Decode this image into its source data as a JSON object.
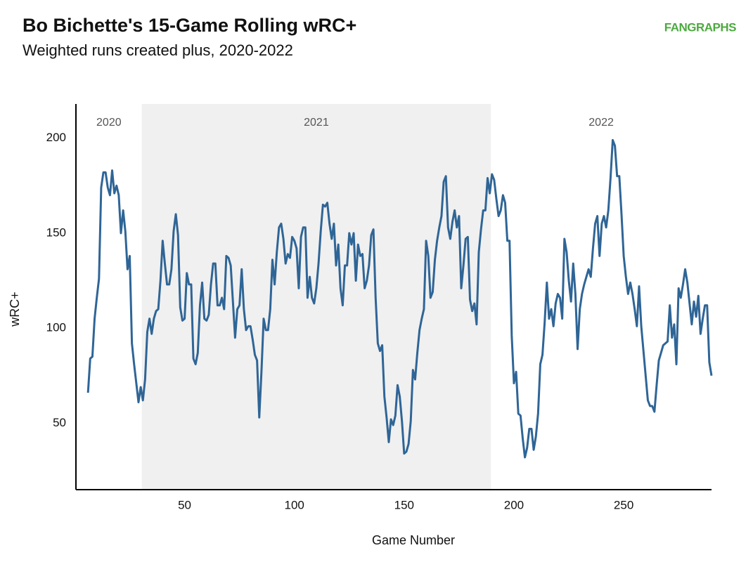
{
  "chart_data": {
    "type": "line",
    "title": "Bo Bichette's 15-Game Rolling wRC+",
    "subtitle": "Weighted runs created plus, 2020-2022",
    "logo": "FANGRAPHS",
    "x_label": "Game Number",
    "y_label": "wRC+",
    "xlim": [
      0.5,
      290
    ],
    "ylim": [
      15,
      218
    ],
    "xticks": [
      50,
      100,
      150,
      200,
      250
    ],
    "yticks": [
      50,
      100,
      150,
      200
    ],
    "grid": false,
    "seasons": [
      {
        "label": "2020",
        "start": 0.5,
        "end": 30.5,
        "shaded": false
      },
      {
        "label": "2021",
        "start": 30.5,
        "end": 189.5,
        "shaded": true
      },
      {
        "label": "2022",
        "start": 189.5,
        "end": 290,
        "shaded": false
      }
    ],
    "x": [
      6,
      7,
      8,
      9,
      10,
      11,
      12,
      13,
      14,
      15,
      16,
      17,
      18,
      19,
      20,
      21,
      22,
      23,
      24,
      25,
      26,
      27,
      28,
      29,
      30,
      31,
      32,
      33,
      34,
      35,
      36,
      37,
      38,
      39,
      40,
      41,
      42,
      43,
      44,
      45,
      46,
      47,
      48,
      49,
      50,
      51,
      52,
      53,
      54,
      55,
      56,
      57,
      58,
      59,
      60,
      61,
      62,
      63,
      64,
      65,
      66,
      67,
      68,
      69,
      70,
      71,
      72,
      73,
      74,
      75,
      76,
      77,
      78,
      79,
      80,
      81,
      82,
      83,
      84,
      85,
      86,
      87,
      88,
      89,
      90,
      91,
      92,
      93,
      94,
      95,
      96,
      97,
      98,
      99,
      100,
      101,
      102,
      103,
      104,
      105,
      106,
      107,
      108,
      109,
      110,
      111,
      112,
      113,
      114,
      115,
      116,
      117,
      118,
      119,
      120,
      121,
      122,
      123,
      124,
      125,
      126,
      127,
      128,
      129,
      130,
      131,
      132,
      133,
      134,
      135,
      136,
      137,
      138,
      139,
      140,
      141,
      142,
      143,
      144,
      145,
      146,
      147,
      148,
      149,
      150,
      151,
      152,
      153,
      154,
      155,
      156,
      157,
      158,
      159,
      160,
      161,
      162,
      163,
      164,
      165,
      166,
      167,
      168,
      169,
      170,
      171,
      172,
      173,
      174,
      175,
      176,
      177,
      178,
      179,
      180,
      181,
      182,
      183,
      184,
      185,
      186,
      187,
      188,
      189,
      190,
      191,
      192,
      193,
      194,
      195,
      196,
      197,
      198,
      199,
      200,
      201,
      202,
      203,
      204,
      205,
      206,
      207,
      208,
      209,
      210,
      211,
      212,
      213,
      214,
      215,
      216,
      217,
      218,
      219,
      220,
      221,
      222,
      223,
      224,
      225,
      226,
      227,
      228,
      229,
      230,
      231,
      232,
      233,
      234,
      235,
      236,
      237,
      238,
      239,
      240,
      241,
      242,
      243,
      244,
      245,
      246,
      247,
      248,
      249,
      250,
      251,
      252,
      253,
      254,
      255,
      256,
      257,
      258,
      259,
      260,
      261,
      262,
      263,
      264,
      265,
      266,
      267,
      268,
      269,
      270,
      271,
      272,
      273,
      274,
      275,
      276,
      277,
      278,
      279,
      280,
      281,
      282,
      283,
      284,
      285,
      286,
      287,
      288,
      289,
      290
    ],
    "series": [
      {
        "name": "wRC+",
        "color": "#2f6596",
        "values": [
          66,
          84,
          85,
          105,
          116,
          126,
          174,
          182,
          182,
          174,
          170,
          183,
          171,
          175,
          170,
          150,
          162,
          151,
          131,
          138,
          92,
          81,
          71,
          61,
          69,
          62,
          73,
          98,
          105,
          97,
          105,
          109,
          110,
          125,
          146,
          134,
          123,
          123,
          131,
          151,
          160,
          149,
          111,
          104,
          105,
          129,
          123,
          123,
          84,
          81,
          87,
          112,
          124,
          105,
          104,
          107,
          123,
          134,
          134,
          112,
          112,
          116,
          110,
          138,
          137,
          133,
          114,
          95,
          110,
          112,
          131,
          110,
          99,
          101,
          101,
          94,
          86,
          83,
          53,
          77,
          105,
          99,
          99,
          110,
          136,
          123,
          140,
          153,
          155,
          147,
          134,
          139,
          137,
          148,
          146,
          142,
          121,
          148,
          153,
          153,
          116,
          127,
          116,
          113,
          121,
          134,
          151,
          165,
          164,
          166,
          155,
          147,
          155,
          133,
          144,
          121,
          112,
          133,
          133,
          150,
          144,
          150,
          125,
          144,
          138,
          139,
          121,
          125,
          133,
          149,
          152,
          116,
          92,
          88,
          91,
          64,
          53,
          40,
          52,
          49,
          54,
          70,
          64,
          51,
          34,
          35,
          39,
          51,
          78,
          73,
          87,
          99,
          105,
          110,
          146,
          138,
          116,
          119,
          136,
          146,
          153,
          159,
          177,
          180,
          153,
          147,
          156,
          162,
          153,
          159,
          121,
          133,
          147,
          148,
          115,
          109,
          113,
          102,
          140,
          152,
          162,
          162,
          179,
          171,
          181,
          178,
          168,
          159,
          162,
          170,
          166,
          146,
          146,
          96,
          71,
          77,
          55,
          54,
          42,
          32,
          37,
          47,
          47,
          36,
          43,
          55,
          81,
          86,
          103,
          124,
          105,
          110,
          101,
          113,
          118,
          116,
          105,
          147,
          140,
          125,
          114,
          134,
          118,
          89,
          110,
          118,
          123,
          127,
          131,
          127,
          142,
          155,
          159,
          138,
          155,
          159,
          153,
          162,
          179,
          199,
          196,
          180,
          180,
          160,
          138,
          127,
          118,
          124,
          118,
          110,
          101,
          122,
          101,
          88,
          75,
          62,
          59,
          59,
          56,
          70,
          83,
          87,
          91,
          92,
          93,
          112,
          95,
          102,
          81,
          121,
          116,
          123,
          131,
          124,
          113,
          102,
          114,
          106,
          117,
          97,
          105,
          112,
          112,
          82,
          75
        ]
      }
    ]
  }
}
